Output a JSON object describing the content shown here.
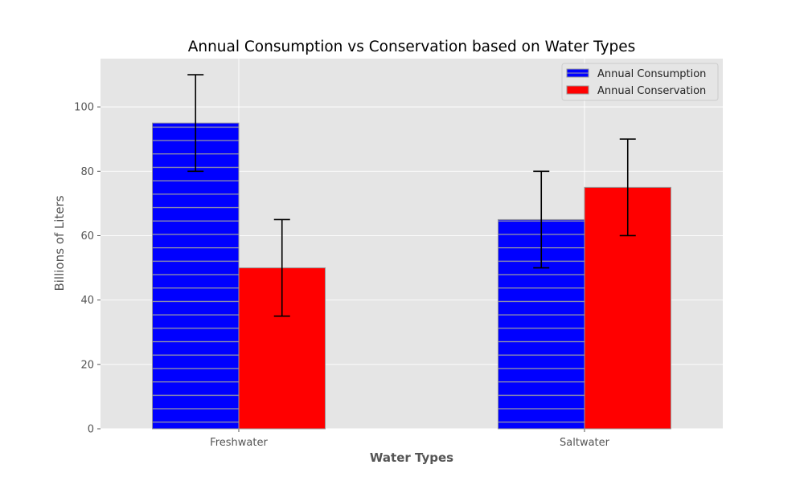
{
  "chart_data": {
    "type": "bar",
    "title": "Annual Consumption vs Conservation based on Water Types",
    "xlabel": "Water Types",
    "ylabel": "Billions of Liters",
    "categories": [
      "Freshwater",
      "Saltwater"
    ],
    "ylim": [
      0,
      115
    ],
    "yticks": [
      0,
      20,
      40,
      60,
      80,
      100
    ],
    "grid": true,
    "legend_position": "top-right",
    "series": [
      {
        "name": "Annual Consumption",
        "values": [
          95,
          65
        ],
        "error": [
          15,
          15
        ],
        "color": "#0000ff",
        "hatch": "horizontal"
      },
      {
        "name": "Annual Conservation",
        "values": [
          50,
          75
        ],
        "error": [
          15,
          15
        ],
        "color": "#ff0000",
        "hatch": "none"
      }
    ],
    "style": {
      "axes_background": "#e5e5e5",
      "grid_color": "#ffffff",
      "bar_edge_color": "#999999",
      "text_color": "#555555",
      "title_color": "#000000"
    }
  }
}
